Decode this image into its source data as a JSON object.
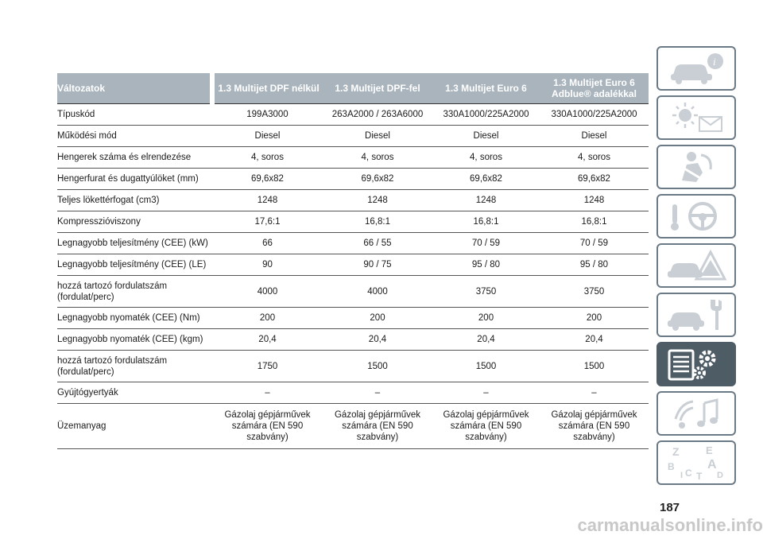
{
  "table": {
    "headers": [
      "Változatok",
      "1.3 Multijet DPF nélkül",
      "1.3 Multijet DPF-fel",
      "1.3 Multijet Euro 6",
      "1.3 Multijet Euro 6 Adblue® adalékkal"
    ],
    "rows": [
      {
        "label": "Típuskód",
        "values": [
          "199A3000",
          "263A2000 / 263A6000",
          "330A1000/225A2000",
          "330A1000/225A2000"
        ]
      },
      {
        "label": "Működési mód",
        "values": [
          "Diesel",
          "Diesel",
          "Diesel",
          "Diesel"
        ]
      },
      {
        "label": "Hengerek száma és elrendezése",
        "values": [
          "4, soros",
          "4, soros",
          "4, soros",
          "4, soros"
        ]
      },
      {
        "label": "Hengerfurat és dugattyúlöket (mm)",
        "values": [
          "69,6x82",
          "69,6x82",
          "69,6x82",
          "69,6x82"
        ]
      },
      {
        "label": "Teljes lökettérfogat (cm3)",
        "values": [
          "1248",
          "1248",
          "1248",
          "1248"
        ]
      },
      {
        "label": "Kompresszióviszony",
        "values": [
          "17,6:1",
          "16,8:1",
          "16,8:1",
          "16,8:1"
        ]
      },
      {
        "label": "Legnagyobb teljesítmény (CEE) (kW)",
        "values": [
          "66",
          "66 / 55",
          "70 / 59",
          "70 / 59"
        ]
      },
      {
        "label": "Legnagyobb teljesítmény (CEE) (LE)",
        "values": [
          "90",
          "90 / 75",
          "95 / 80",
          "95 / 80"
        ]
      },
      {
        "label": "hozzá tartozó fordulatszám (fordulat/perc)",
        "values": [
          "4000",
          "4000",
          "3750",
          "3750"
        ]
      },
      {
        "label": "Legnagyobb nyomaték (CEE) (Nm)",
        "values": [
          "200",
          "200",
          "200",
          "200"
        ]
      },
      {
        "label": "Legnagyobb nyomaték (CEE) (kgm)",
        "values": [
          "20,4",
          "20,4",
          "20,4",
          "20,4"
        ]
      },
      {
        "label": "hozzá tartozó fordulatszám (fordulat/perc)",
        "values": [
          "1750",
          "1500",
          "1500",
          "1500"
        ]
      },
      {
        "label": "Gyújtógyertyák",
        "values": [
          "–",
          "–",
          "–",
          "–"
        ]
      },
      {
        "label": "Üzemanyag",
        "values": [
          "Gázolaj gépjárművek számára (EN 590 szabvány)",
          "Gázolaj gépjárművek számára (EN 590 szabvány)",
          "Gázolaj gépjárművek számára (EN 590 szabvány)",
          "Gázolaj gépjárművek számára (EN 590 szabvány)"
        ]
      }
    ]
  },
  "tabs": [
    {
      "icon": "car-info-icon"
    },
    {
      "icon": "warning-lights-icon"
    },
    {
      "icon": "safety-airbag-icon"
    },
    {
      "icon": "steering-wheel-icon"
    },
    {
      "icon": "emergency-icon"
    },
    {
      "icon": "maintenance-icon"
    },
    {
      "icon": "technical-data-icon",
      "active": true
    },
    {
      "icon": "multimedia-icon"
    },
    {
      "icon": "index-icon"
    }
  ],
  "page_number": "187",
  "watermark": "carmanualsonline.info",
  "colors": {
    "header_bg": "#a9b4bd",
    "tab_active": "#4e5c66",
    "tab_border": "#6a7a86"
  }
}
